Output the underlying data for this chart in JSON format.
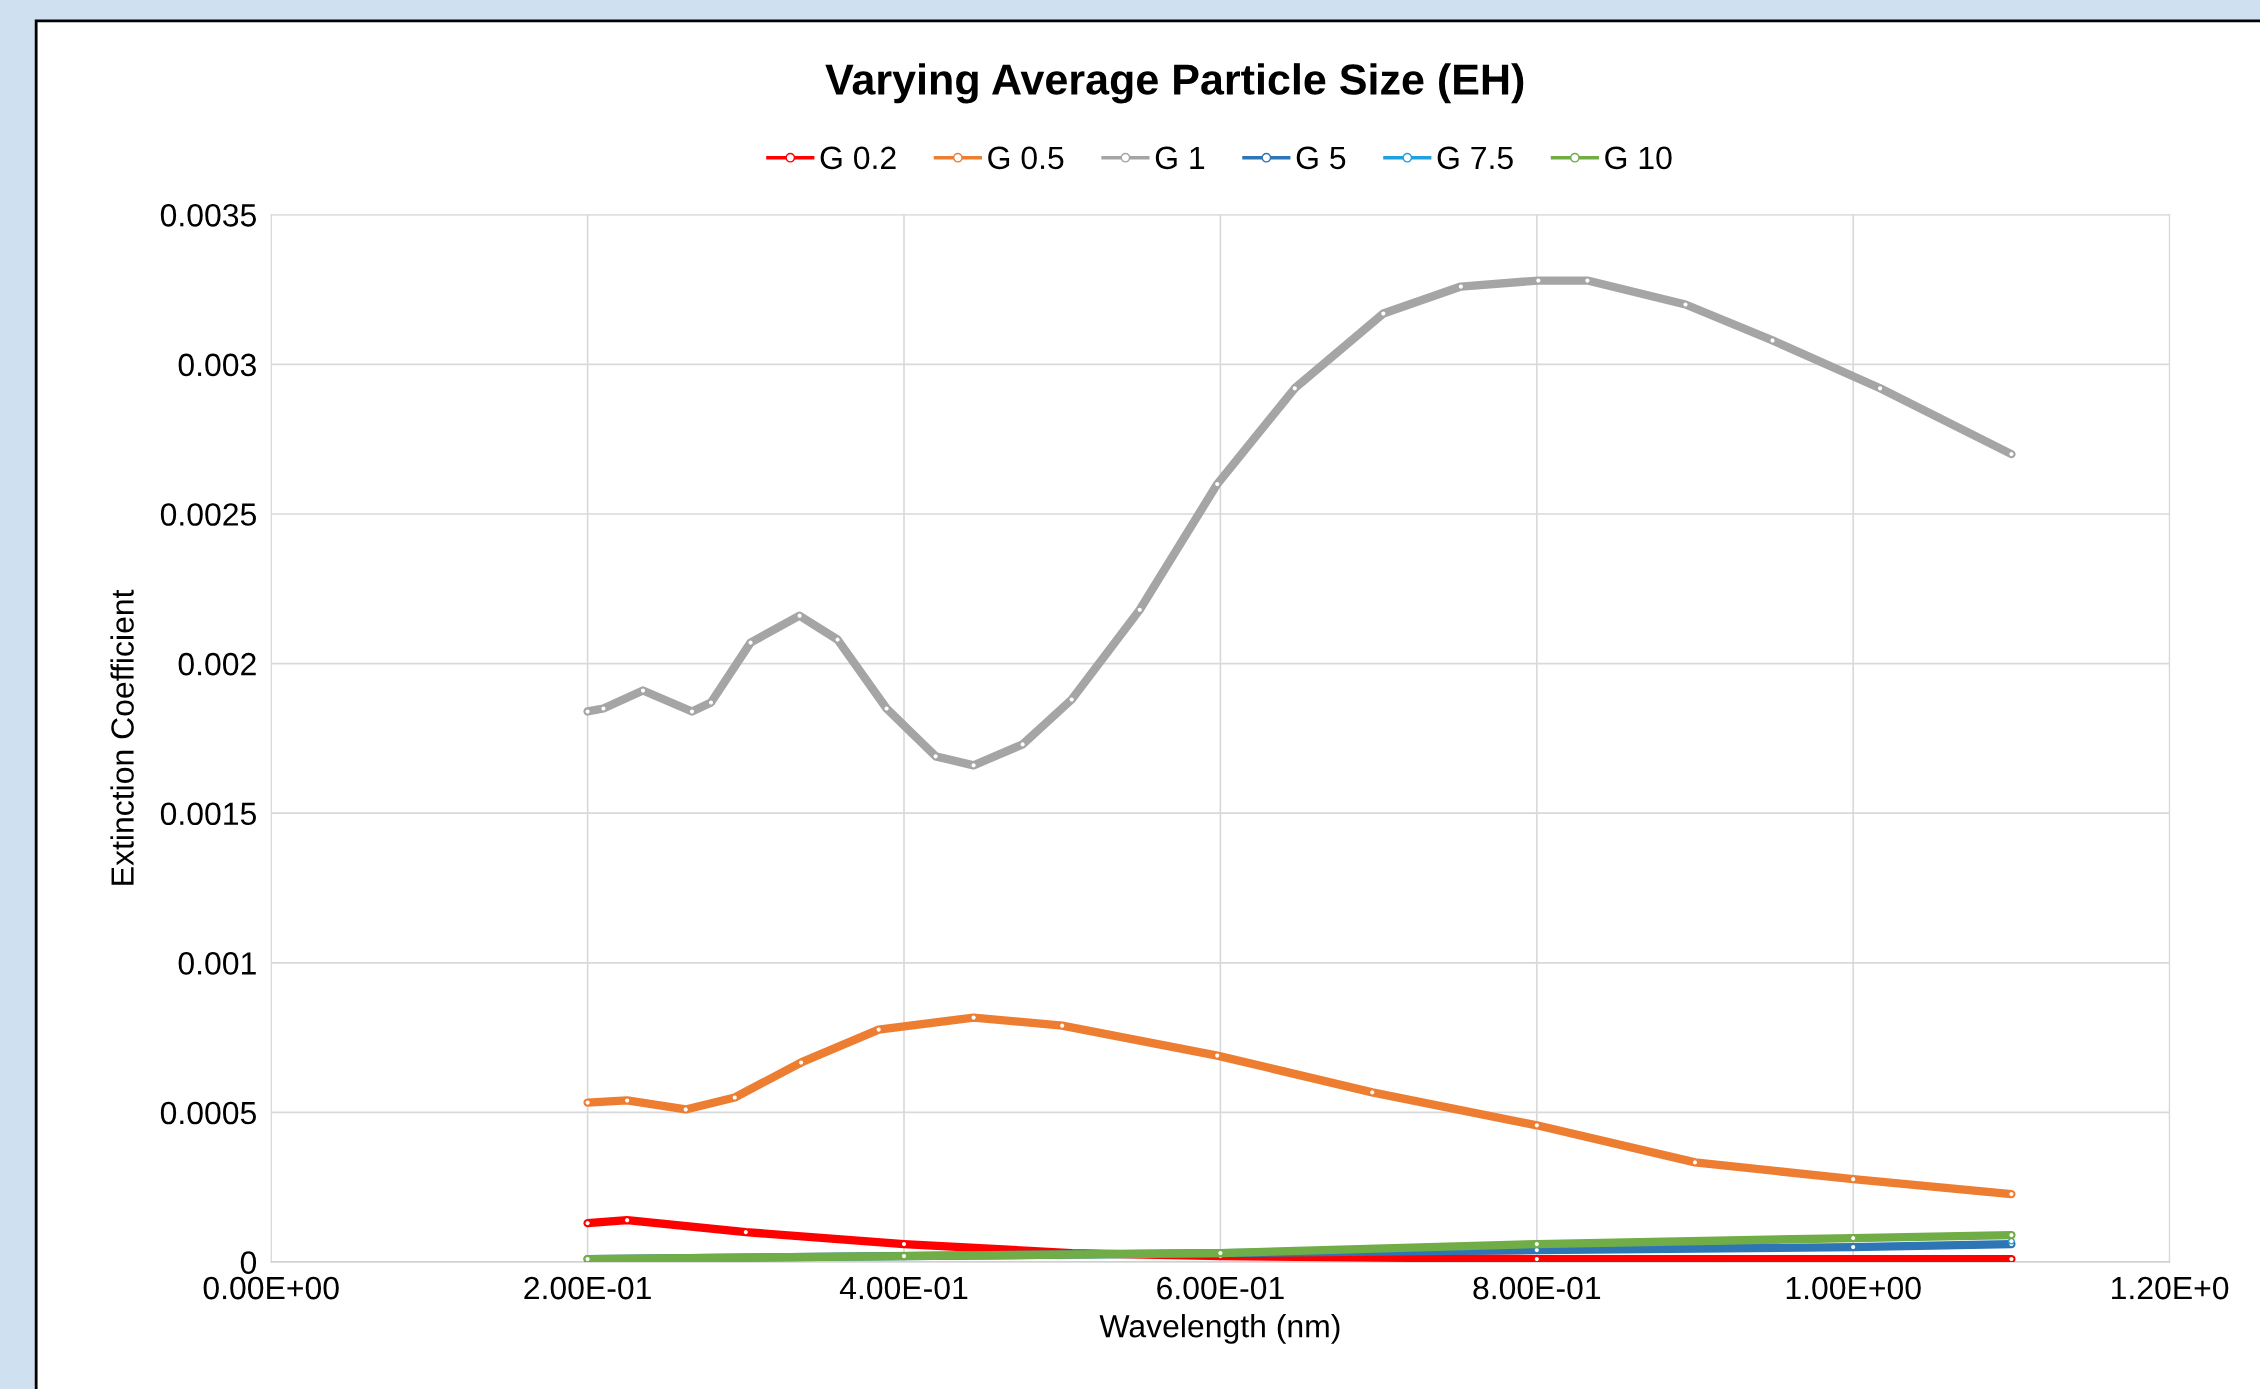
{
  "chart_data": {
    "type": "line",
    "title": "Varying Average Particle Size (EH)",
    "xlabel": "Wavelength (nm)",
    "ylabel": "Extinction Coefficient",
    "series": [
      {
        "name": "G 0.2",
        "color": "#ff0000",
        "x": [
          0.2,
          0.225,
          0.3,
          0.4,
          0.506,
          0.6,
          0.8,
          1.1
        ],
        "values": [
          0.00013,
          0.00014,
          0.0001,
          6e-05,
          3e-05,
          2e-05,
          1e-05,
          1e-05
        ]
      },
      {
        "name": "G 0.5",
        "color": "#ed7d31",
        "x": [
          0.2,
          0.225,
          0.262,
          0.293,
          0.335,
          0.384,
          0.444,
          0.5,
          0.598,
          0.696,
          0.8,
          0.9,
          1.0,
          1.1
        ],
        "values": [
          0.000533,
          0.00054,
          0.00051,
          0.00055,
          0.000667,
          0.000777,
          0.000817,
          0.00079,
          0.00069,
          0.000567,
          0.000457,
          0.000333,
          0.000277,
          0.000227
        ]
      },
      {
        "name": "G 1",
        "color": "#a5a5a5",
        "x": [
          0.2,
          0.21,
          0.235,
          0.266,
          0.278,
          0.303,
          0.334,
          0.358,
          0.389,
          0.42,
          0.444,
          0.475,
          0.506,
          0.549,
          0.598,
          0.647,
          0.703,
          0.752,
          0.801,
          0.832,
          0.894,
          0.949,
          1.017,
          1.1
        ],
        "values": [
          0.00184,
          0.00185,
          0.00191,
          0.00184,
          0.00187,
          0.00207,
          0.00216,
          0.00208,
          0.00185,
          0.00169,
          0.00166,
          0.00173,
          0.00188,
          0.00218,
          0.0026,
          0.00292,
          0.00317,
          0.00326,
          0.00328,
          0.00328,
          0.0032,
          0.00308,
          0.00292,
          0.0027
        ]
      },
      {
        "name": "G 5",
        "color": "#2e75b6",
        "x": [
          0.2,
          0.6,
          0.8,
          1.0,
          1.1
        ],
        "values": [
          1e-05,
          3e-05,
          4e-05,
          5e-05,
          6e-05
        ]
      },
      {
        "name": "G 7.5",
        "color": "#1fa0e0",
        "x": [
          1.1
        ],
        "values": [
          7e-05
        ]
      },
      {
        "name": "G 10",
        "color": "#70ad47",
        "x": [
          0.2,
          0.4,
          0.6,
          0.8,
          1.0,
          1.1
        ],
        "values": [
          1e-05,
          2e-05,
          3e-05,
          6e-05,
          8e-05,
          9e-05
        ]
      }
    ],
    "xlim": [
      0,
      1.2
    ],
    "xticks": [
      {
        "value": 0,
        "label": "0.00E+00"
      },
      {
        "value": 0.2,
        "label": "2.00E-01"
      },
      {
        "value": 0.4,
        "label": "4.00E-01"
      },
      {
        "value": 0.6,
        "label": "6.00E-01"
      },
      {
        "value": 0.8,
        "label": "8.00E-01"
      },
      {
        "value": 1.0,
        "label": "1.00E+00"
      },
      {
        "value": 1.2,
        "label": "1.20E+0"
      }
    ],
    "ylim": [
      0,
      0.0035
    ],
    "yticks": [
      0,
      0.0005,
      0.001,
      0.0015,
      0.002,
      0.0025,
      0.003,
      0.0035
    ],
    "grid": true,
    "legend": "top",
    "marker": "circle",
    "line_style": "solid"
  }
}
